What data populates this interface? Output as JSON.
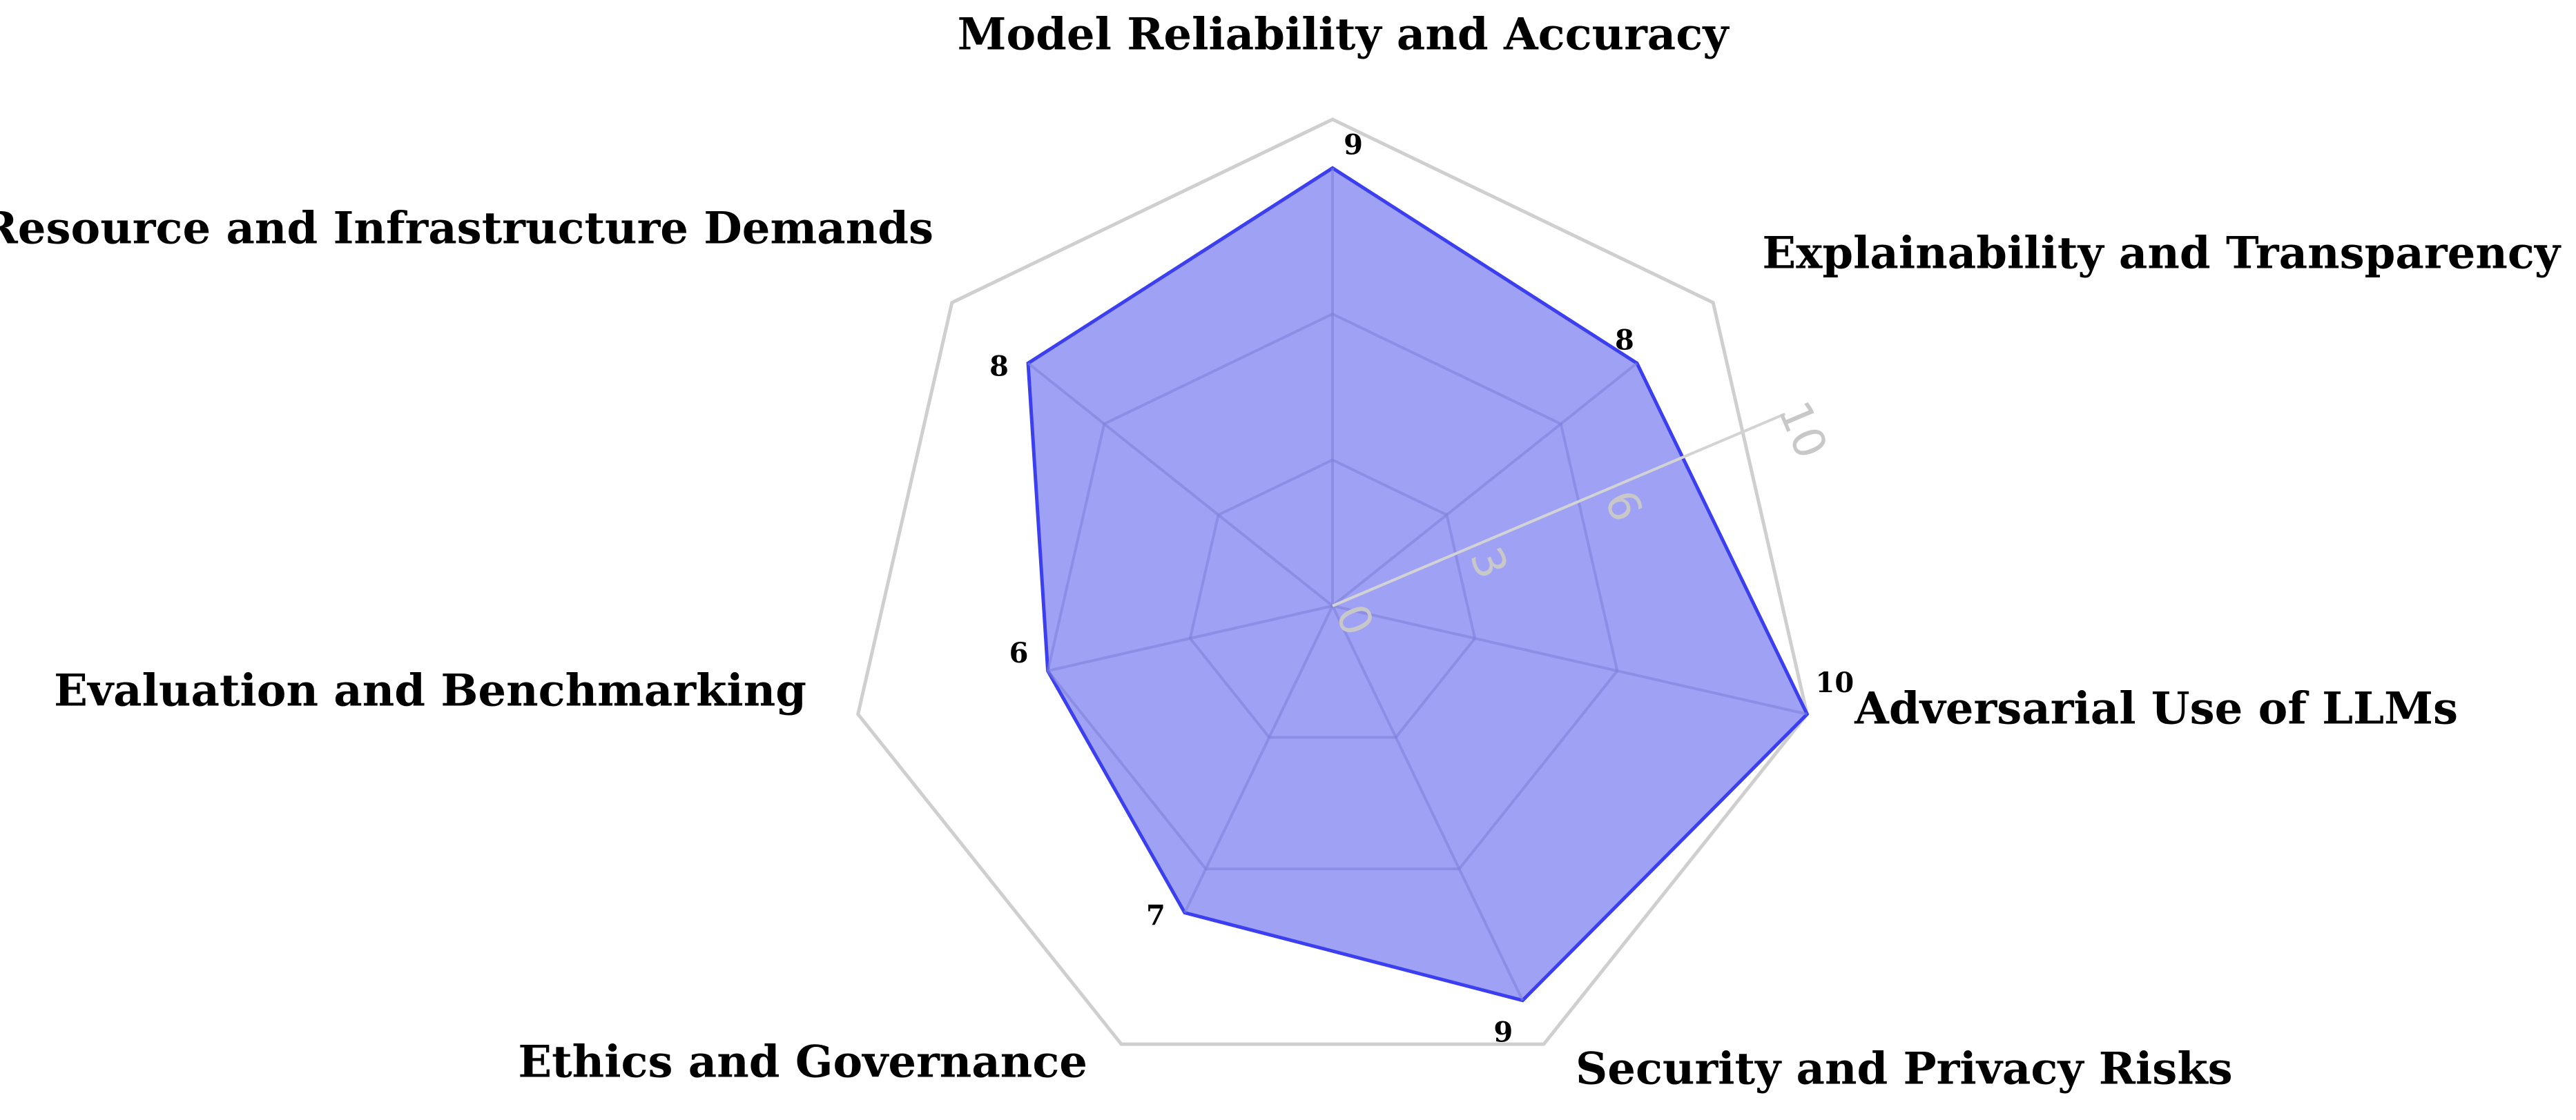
{
  "chart_data": {
    "type": "radar",
    "title": "",
    "range": [
      0,
      10
    ],
    "ticks": [
      0,
      3,
      6,
      10
    ],
    "grid_levels": [
      3,
      6,
      10
    ],
    "categories": [
      "Model Reliability and Accuracy",
      "Explainability and Transparency",
      "Adversarial Use of LLMs",
      "Security and Privacy Risks",
      "Ethics and Governance",
      "Evaluation and Benchmarking",
      "Resource and Infrastructure Demands"
    ],
    "series": [
      {
        "values": [
          9,
          8,
          10,
          9,
          7,
          6,
          8
        ],
        "color": "#6b6ff0",
        "line_color": "#3b3ff0"
      }
    ],
    "grid_color": "#cfcfcf"
  }
}
